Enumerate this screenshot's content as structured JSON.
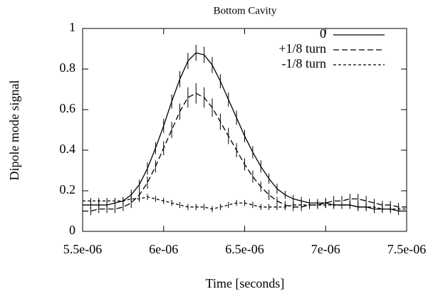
{
  "chart_data": {
    "type": "line",
    "title": "Bottom Cavity",
    "xlabel": "Time [seconds]",
    "ylabel": "Dipole mode signal",
    "x": [
      5.5e-06,
      5.55e-06,
      5.6e-06,
      5.65e-06,
      5.7e-06,
      5.75e-06,
      5.8e-06,
      5.85e-06,
      5.9e-06,
      5.95e-06,
      6e-06,
      6.05e-06,
      6.1e-06,
      6.15e-06,
      6.2e-06,
      6.25e-06,
      6.3e-06,
      6.35e-06,
      6.4e-06,
      6.45e-06,
      6.5e-06,
      6.55e-06,
      6.6e-06,
      6.65e-06,
      6.7e-06,
      6.75e-06,
      6.8e-06,
      6.85e-06,
      6.9e-06,
      6.95e-06,
      7e-06,
      7.05e-06,
      7.1e-06,
      7.15e-06,
      7.2e-06,
      7.25e-06,
      7.3e-06,
      7.35e-06,
      7.4e-06,
      7.45e-06,
      7.5e-06
    ],
    "series": [
      {
        "name": "0",
        "color": "#000000",
        "dash": "solid",
        "values": [
          0.13,
          0.13,
          0.13,
          0.13,
          0.14,
          0.15,
          0.18,
          0.23,
          0.31,
          0.41,
          0.52,
          0.64,
          0.75,
          0.84,
          0.88,
          0.87,
          0.82,
          0.74,
          0.65,
          0.56,
          0.47,
          0.39,
          0.32,
          0.26,
          0.21,
          0.18,
          0.16,
          0.15,
          0.14,
          0.14,
          0.14,
          0.13,
          0.13,
          0.13,
          0.12,
          0.12,
          0.11,
          0.11,
          0.11,
          0.1,
          0.1
        ],
        "errors": [
          0.02,
          0.02,
          0.02,
          0.02,
          0.02,
          0.02,
          0.025,
          0.025,
          0.03,
          0.03,
          0.035,
          0.035,
          0.04,
          0.04,
          0.04,
          0.04,
          0.04,
          0.035,
          0.035,
          0.035,
          0.03,
          0.03,
          0.03,
          0.025,
          0.025,
          0.02,
          0.02,
          0.02,
          0.02,
          0.02,
          0.02,
          0.02,
          0.02,
          0.02,
          0.02,
          0.02,
          0.02,
          0.02,
          0.02,
          0.02,
          0.02
        ]
      },
      {
        "name": "+1/8 turn",
        "color": "#000000",
        "dash": "dashed",
        "values": [
          0.1,
          0.1,
          0.11,
          0.11,
          0.11,
          0.12,
          0.14,
          0.18,
          0.24,
          0.32,
          0.41,
          0.5,
          0.59,
          0.66,
          0.68,
          0.66,
          0.61,
          0.54,
          0.47,
          0.4,
          0.33,
          0.27,
          0.22,
          0.18,
          0.15,
          0.13,
          0.12,
          0.12,
          0.13,
          0.13,
          0.14,
          0.15,
          0.15,
          0.16,
          0.16,
          0.15,
          0.14,
          0.13,
          0.13,
          0.12,
          0.12
        ],
        "errors": [
          0.02,
          0.02,
          0.02,
          0.02,
          0.02,
          0.02,
          0.025,
          0.025,
          0.03,
          0.03,
          0.035,
          0.04,
          0.04,
          0.05,
          0.05,
          0.05,
          0.045,
          0.04,
          0.04,
          0.035,
          0.03,
          0.03,
          0.025,
          0.025,
          0.02,
          0.02,
          0.02,
          0.02,
          0.02,
          0.02,
          0.025,
          0.025,
          0.025,
          0.025,
          0.025,
          0.025,
          0.02,
          0.02,
          0.02,
          0.02,
          0.02
        ]
      },
      {
        "name": "-1/8 turn",
        "color": "#000000",
        "dash": "dotted",
        "values": [
          0.15,
          0.15,
          0.15,
          0.15,
          0.15,
          0.15,
          0.16,
          0.16,
          0.17,
          0.16,
          0.15,
          0.14,
          0.13,
          0.12,
          0.12,
          0.12,
          0.11,
          0.12,
          0.13,
          0.14,
          0.14,
          0.13,
          0.12,
          0.12,
          0.12,
          0.12,
          0.13,
          0.13,
          0.13,
          0.13,
          0.13,
          0.13,
          0.13,
          0.13,
          0.12,
          0.12,
          0.12,
          0.11,
          0.11,
          0.11,
          0.11
        ],
        "errors": [
          0.015,
          0.015,
          0.015,
          0.015,
          0.015,
          0.015,
          0.015,
          0.015,
          0.015,
          0.015,
          0.015,
          0.015,
          0.015,
          0.015,
          0.015,
          0.015,
          0.015,
          0.015,
          0.015,
          0.015,
          0.015,
          0.015,
          0.015,
          0.015,
          0.015,
          0.015,
          0.015,
          0.015,
          0.015,
          0.015,
          0.015,
          0.015,
          0.015,
          0.015,
          0.015,
          0.015,
          0.015,
          0.015,
          0.015,
          0.015,
          0.015
        ]
      }
    ],
    "xlim": [
      5.5e-06,
      7.5e-06
    ],
    "xticks": [
      {
        "value": 5.5e-06,
        "label": "5.5e-06"
      },
      {
        "value": 6e-06,
        "label": "6e-06"
      },
      {
        "value": 6.5e-06,
        "label": "6.5e-06"
      },
      {
        "value": 7e-06,
        "label": "7e-06"
      },
      {
        "value": 7.5e-06,
        "label": "7.5e-06"
      }
    ],
    "ylim": [
      0,
      1
    ],
    "yticks": [
      0,
      0.2,
      0.4,
      0.6,
      0.8,
      1
    ],
    "legend": "top-right"
  }
}
